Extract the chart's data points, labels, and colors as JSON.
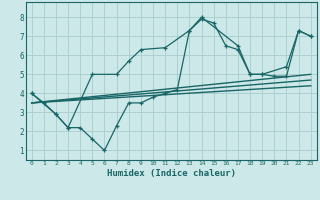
{
  "xlabel": "Humidex (Indice chaleur)",
  "xlim": [
    -0.5,
    23.5
  ],
  "ylim": [
    0.5,
    8.8
  ],
  "xticks": [
    0,
    1,
    2,
    3,
    4,
    5,
    6,
    7,
    8,
    9,
    10,
    11,
    12,
    13,
    14,
    15,
    16,
    17,
    18,
    19,
    20,
    21,
    22,
    23
  ],
  "yticks": [
    1,
    2,
    3,
    4,
    5,
    6,
    7,
    8
  ],
  "bg_color": "#cce8e8",
  "grid_color": "#aacccc",
  "line_color": "#1a6666",
  "line1": {
    "x": [
      0,
      1,
      2,
      3,
      4,
      5,
      6,
      7,
      8,
      9,
      10,
      11,
      12,
      13,
      14,
      15,
      16,
      17,
      18,
      19,
      20,
      21,
      22,
      23
    ],
    "y": [
      4.0,
      3.5,
      2.9,
      2.2,
      2.2,
      1.6,
      1.0,
      2.3,
      3.5,
      3.5,
      3.8,
      4.0,
      4.2,
      7.3,
      7.9,
      7.7,
      6.5,
      6.3,
      5.0,
      5.0,
      4.9,
      4.9,
      7.3,
      7.0
    ]
  },
  "line2": {
    "x": [
      0,
      2,
      3,
      5,
      7,
      8,
      9,
      11,
      13,
      14,
      17,
      18,
      19,
      21,
      22,
      23
    ],
    "y": [
      4.0,
      2.9,
      2.2,
      5.0,
      5.0,
      5.7,
      6.3,
      6.4,
      7.3,
      8.0,
      6.5,
      5.0,
      5.0,
      5.4,
      7.3,
      7.0
    ]
  },
  "diag_lines": [
    {
      "x": [
        0,
        23
      ],
      "y": [
        3.5,
        5.0
      ]
    },
    {
      "x": [
        0,
        23
      ],
      "y": [
        3.5,
        4.7
      ]
    },
    {
      "x": [
        0,
        23
      ],
      "y": [
        3.5,
        4.4
      ]
    }
  ]
}
